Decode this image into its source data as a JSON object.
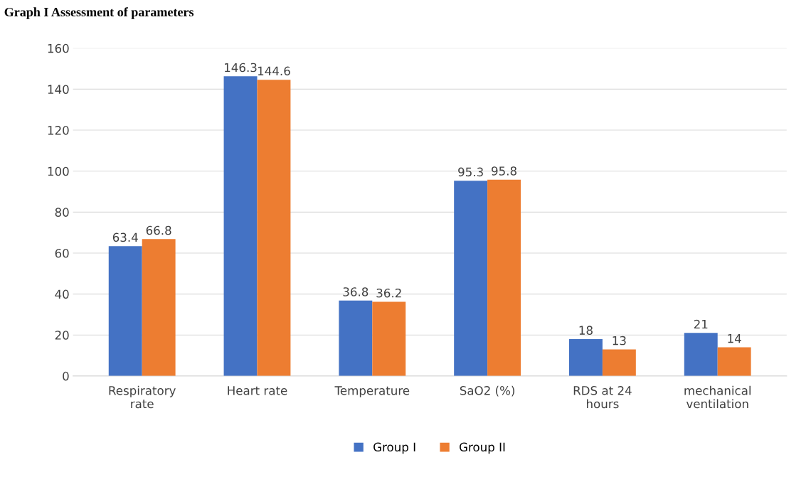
{
  "chart_data": {
    "type": "bar",
    "title": "Graph I Assessment of parameters",
    "categories": [
      "Respiratory\nrate",
      "Heart rate",
      "Temperature",
      "SaO2 (%)",
      "RDS at 24\nhours",
      "mechanical\nventilation"
    ],
    "series": [
      {
        "name": "Group I",
        "color": "#4472c4",
        "values": [
          63.4,
          146.3,
          36.8,
          95.3,
          18,
          21
        ]
      },
      {
        "name": "Group II",
        "color": "#ed7d31",
        "values": [
          66.8,
          144.6,
          36.2,
          95.8,
          13,
          14
        ]
      }
    ],
    "ylim": [
      0,
      160
    ],
    "yticks": [
      0,
      20,
      40,
      60,
      80,
      100,
      120,
      140,
      160
    ],
    "grid": "y",
    "legend": "bottom",
    "data_labels": true
  }
}
